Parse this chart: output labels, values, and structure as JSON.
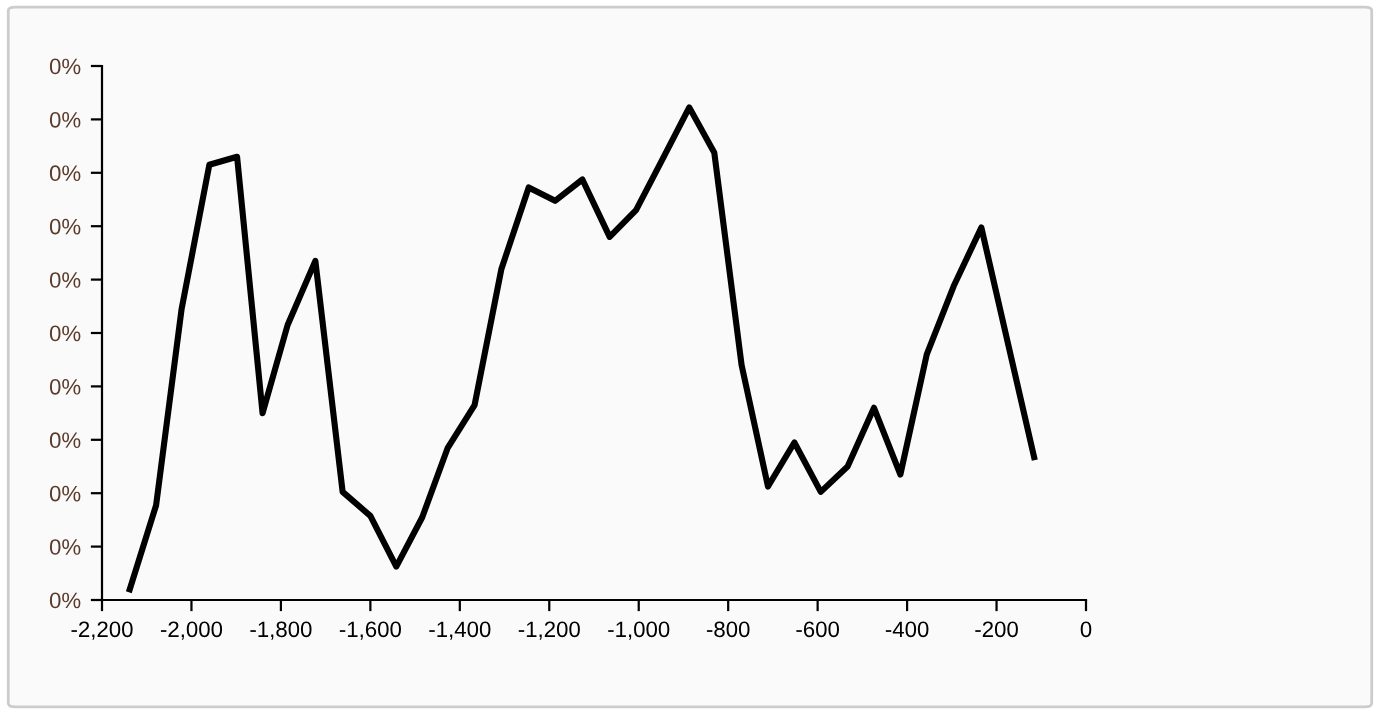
{
  "chart_data": {
    "type": "line",
    "x": [
      -2138,
      -2079,
      -2022,
      -1960,
      -1898,
      -1841,
      -1785,
      -1723,
      -1662,
      -1600,
      -1542,
      -1484,
      -1427,
      -1367,
      -1307,
      -1246,
      -1187,
      -1126,
      -1065,
      -1006,
      -947,
      -887,
      -831,
      -770,
      -711,
      -652,
      -593,
      -533,
      -474,
      -415,
      -356,
      -296,
      -234,
      -175,
      -116
    ],
    "series": [
      {
        "color": "#000000",
        "values": [
          0.008,
          0.071,
          0.218,
          0.326,
          0.332,
          0.14,
          0.206,
          0.254,
          0.081,
          0.063,
          0.025,
          0.062,
          0.114,
          0.146,
          0.248,
          0.309,
          0.299,
          0.315,
          0.272,
          0.292,
          0.33,
          0.369,
          0.335,
          0.176,
          0.085,
          0.118,
          0.081,
          0.1,
          0.144,
          0.094,
          0.184,
          0.235,
          0.279,
          0.193,
          0.107
        ]
      }
    ],
    "xlim": [
      -2200,
      0
    ],
    "xticks": [
      {
        "value": -2200,
        "label": "-2,200"
      },
      {
        "value": -2000,
        "label": "-2,000"
      },
      {
        "value": -1800,
        "label": "-1,800"
      },
      {
        "value": -1600,
        "label": "-1,600"
      },
      {
        "value": -1400,
        "label": "-1,400"
      },
      {
        "value": -1200,
        "label": "-1,200"
      },
      {
        "value": -1000,
        "label": "-1,000"
      },
      -800,
      -600,
      -400,
      -200,
      0
    ],
    "ylim": [
      0,
      0.4
    ],
    "yticks": [
      {
        "value": 0,
        "label": "0%"
      },
      {
        "value": 0.04,
        "label": "0%"
      },
      {
        "value": 0.08,
        "label": "0%"
      },
      {
        "value": 0.12,
        "label": "0%"
      },
      {
        "value": 0.16,
        "label": "0%"
      },
      {
        "value": 0.2,
        "label": "0%"
      },
      {
        "value": 0.24,
        "label": "0%"
      },
      {
        "value": 0.28,
        "label": "0%"
      },
      {
        "value": 0.32,
        "label": "0%"
      },
      {
        "value": 0.36,
        "label": "0%"
      },
      {
        "value": 0.4,
        "label": "0%"
      }
    ],
    "marker": "none",
    "line_style": "solid"
  }
}
